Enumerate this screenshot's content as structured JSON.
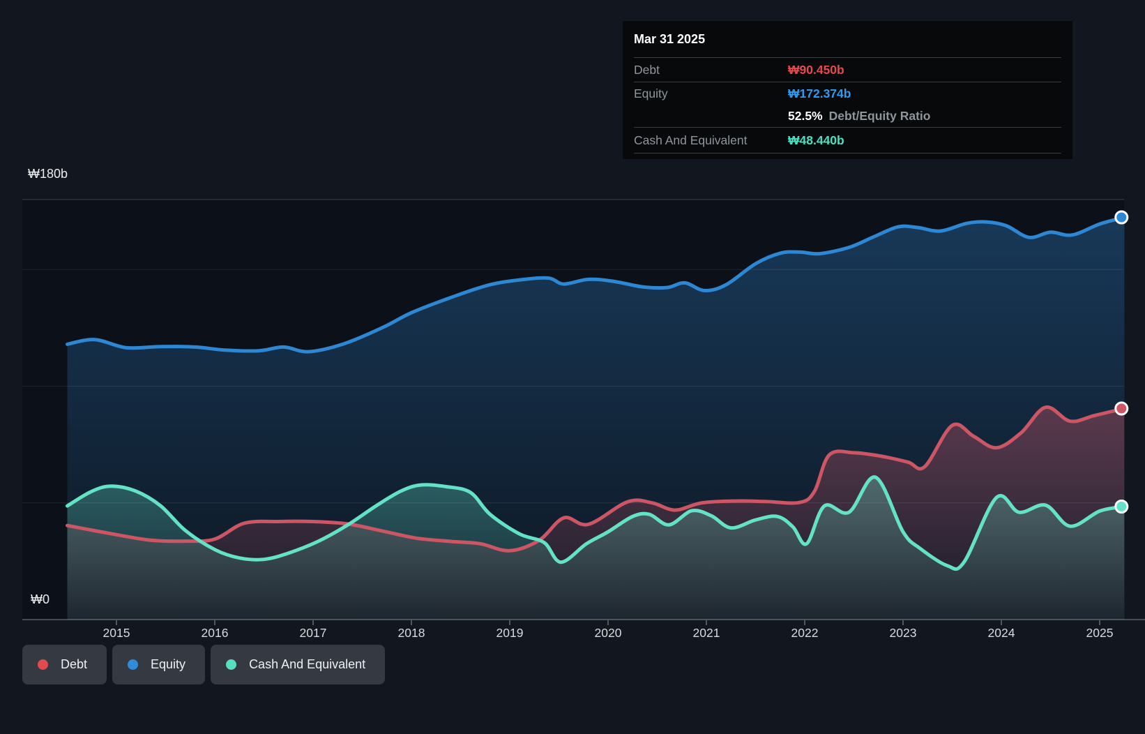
{
  "axis": {
    "y_top_label": "₩180b",
    "y_zero_label": "₩0",
    "years": [
      "2015",
      "2016",
      "2017",
      "2018",
      "2019",
      "2020",
      "2021",
      "2022",
      "2023",
      "2024",
      "2025"
    ]
  },
  "tooltip": {
    "date": "Mar 31 2025",
    "debt": {
      "label": "Debt",
      "value": "₩90.450b",
      "color": "#e9484d"
    },
    "equity": {
      "label": "Equity",
      "value": "₩172.374b",
      "color": "#2f9bf0"
    },
    "ratio": {
      "percent": "52.5%",
      "text": "Debt/Equity Ratio"
    },
    "cash": {
      "label": "Cash And Equivalent",
      "value": "₩48.440b",
      "color": "#43e5c4"
    }
  },
  "legend": {
    "items": [
      {
        "label": "Debt",
        "color": "#e14b50"
      },
      {
        "label": "Equity",
        "color": "#2e8ddb"
      },
      {
        "label": "Cash And Equivalent",
        "color": "#57e0c0"
      }
    ]
  },
  "chart_data": {
    "type": "area",
    "x_unit": "year",
    "x_range": [
      2014.5,
      2025.25
    ],
    "ylim": [
      0,
      180
    ],
    "y_gridline_values_b": [
      0,
      50,
      100,
      150,
      180
    ],
    "x_ticks": [
      2015,
      2016,
      2017,
      2018,
      2019,
      2020,
      2021,
      2022,
      2023,
      2024,
      2025
    ],
    "grid": true,
    "legend_position": "bottom-left",
    "currency": "KRW billions",
    "series": [
      {
        "name": "Equity",
        "color": "#2e87d3",
        "end_value_b": 172.374,
        "points": [
          [
            2014.5,
            118
          ],
          [
            2014.78,
            120
          ],
          [
            2015.1,
            116.5
          ],
          [
            2015.45,
            117
          ],
          [
            2015.8,
            116.8
          ],
          [
            2016.1,
            115.5
          ],
          [
            2016.45,
            115.2
          ],
          [
            2016.7,
            116.8
          ],
          [
            2016.95,
            114.8
          ],
          [
            2017.3,
            118
          ],
          [
            2017.7,
            125
          ],
          [
            2018.0,
            131.5
          ],
          [
            2018.4,
            138
          ],
          [
            2018.8,
            143.5
          ],
          [
            2019.15,
            145.8
          ],
          [
            2019.4,
            146.3
          ],
          [
            2019.55,
            143.8
          ],
          [
            2019.8,
            145.8
          ],
          [
            2020.05,
            145
          ],
          [
            2020.35,
            142.6
          ],
          [
            2020.6,
            142.3
          ],
          [
            2020.78,
            144.3
          ],
          [
            2020.98,
            141
          ],
          [
            2021.2,
            143.5
          ],
          [
            2021.5,
            152.5
          ],
          [
            2021.75,
            157
          ],
          [
            2021.95,
            157.5
          ],
          [
            2022.15,
            156.8
          ],
          [
            2022.45,
            159.5
          ],
          [
            2022.7,
            164
          ],
          [
            2022.95,
            168.3
          ],
          [
            2023.15,
            168
          ],
          [
            2023.38,
            166.5
          ],
          [
            2023.65,
            169.8
          ],
          [
            2023.85,
            170.4
          ],
          [
            2024.05,
            168.8
          ],
          [
            2024.28,
            163.8
          ],
          [
            2024.5,
            166
          ],
          [
            2024.72,
            164.8
          ],
          [
            2025.0,
            169.5
          ],
          [
            2025.25,
            172.374
          ]
        ]
      },
      {
        "name": "Debt",
        "color": "#cd5664",
        "end_value_b": 90.45,
        "points": [
          [
            2014.5,
            40.3
          ],
          [
            2015.0,
            36.4
          ],
          [
            2015.35,
            34
          ],
          [
            2015.7,
            33.6
          ],
          [
            2016.0,
            34.5
          ],
          [
            2016.3,
            41.3
          ],
          [
            2016.65,
            42
          ],
          [
            2017.0,
            42
          ],
          [
            2017.35,
            41
          ],
          [
            2017.7,
            38
          ],
          [
            2018.05,
            34.9
          ],
          [
            2018.4,
            33.5
          ],
          [
            2018.7,
            32.5
          ],
          [
            2019.0,
            29.5
          ],
          [
            2019.3,
            34
          ],
          [
            2019.55,
            43.6
          ],
          [
            2019.8,
            40.8
          ],
          [
            2020.2,
            50.5
          ],
          [
            2020.45,
            50
          ],
          [
            2020.68,
            46.9
          ],
          [
            2020.95,
            50
          ],
          [
            2021.3,
            50.8
          ],
          [
            2021.6,
            50.6
          ],
          [
            2021.95,
            50.2
          ],
          [
            2022.1,
            55
          ],
          [
            2022.25,
            70.6
          ],
          [
            2022.5,
            71.5
          ],
          [
            2022.78,
            70
          ],
          [
            2023.05,
            67.5
          ],
          [
            2023.22,
            65.5
          ],
          [
            2023.5,
            83.2
          ],
          [
            2023.72,
            78.5
          ],
          [
            2023.95,
            73.6
          ],
          [
            2024.2,
            80
          ],
          [
            2024.45,
            91
          ],
          [
            2024.7,
            85
          ],
          [
            2024.95,
            87.5
          ],
          [
            2025.25,
            90.45
          ]
        ]
      },
      {
        "name": "Cash And Equivalent",
        "color": "#64e2c6",
        "end_value_b": 48.44,
        "points": [
          [
            2014.5,
            48.7
          ],
          [
            2014.75,
            55
          ],
          [
            2014.95,
            57.2
          ],
          [
            2015.2,
            55
          ],
          [
            2015.45,
            48.7
          ],
          [
            2015.7,
            38.2
          ],
          [
            2016.0,
            30
          ],
          [
            2016.25,
            26.4
          ],
          [
            2016.5,
            25.8
          ],
          [
            2016.75,
            28.5
          ],
          [
            2017.05,
            33.5
          ],
          [
            2017.35,
            40.5
          ],
          [
            2017.65,
            49
          ],
          [
            2017.9,
            55.2
          ],
          [
            2018.1,
            57.7
          ],
          [
            2018.35,
            57
          ],
          [
            2018.6,
            54.5
          ],
          [
            2018.8,
            45.1
          ],
          [
            2019.1,
            36.7
          ],
          [
            2019.35,
            33
          ],
          [
            2019.52,
            24.6
          ],
          [
            2019.78,
            32.5
          ],
          [
            2020.0,
            37.6
          ],
          [
            2020.25,
            44.2
          ],
          [
            2020.42,
            45.1
          ],
          [
            2020.62,
            40.6
          ],
          [
            2020.85,
            46.6
          ],
          [
            2021.05,
            44.5
          ],
          [
            2021.25,
            39.3
          ],
          [
            2021.5,
            42.7
          ],
          [
            2021.72,
            44.2
          ],
          [
            2021.88,
            39.7
          ],
          [
            2022.02,
            32.5
          ],
          [
            2022.2,
            48.7
          ],
          [
            2022.45,
            46
          ],
          [
            2022.72,
            61
          ],
          [
            2023.0,
            37.6
          ],
          [
            2023.17,
            30.6
          ],
          [
            2023.45,
            23.1
          ],
          [
            2023.62,
            24.6
          ],
          [
            2023.95,
            52.3
          ],
          [
            2024.18,
            46
          ],
          [
            2024.45,
            49
          ],
          [
            2024.7,
            40
          ],
          [
            2025.0,
            46.5
          ],
          [
            2025.25,
            48.44
          ]
        ]
      }
    ]
  }
}
